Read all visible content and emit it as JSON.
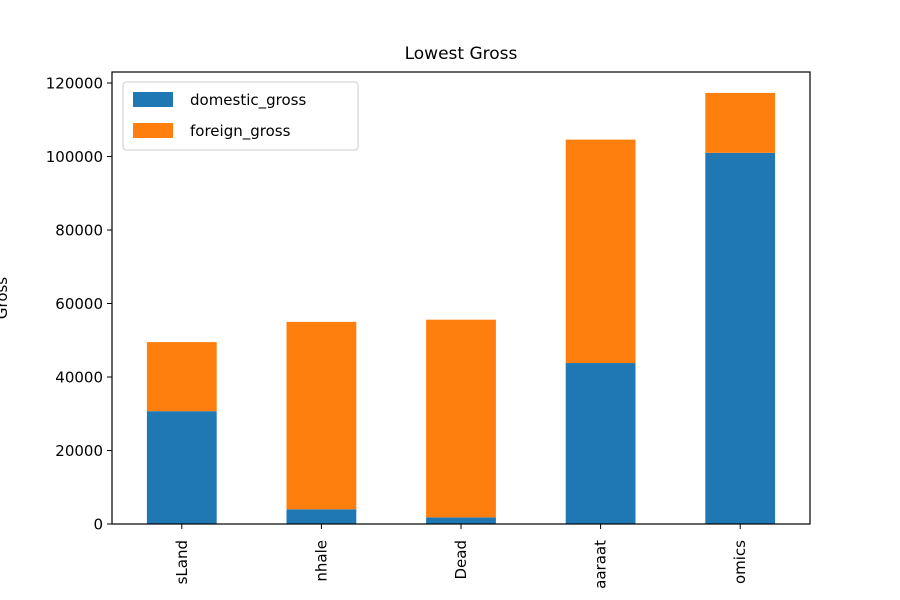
{
  "chart_data": {
    "type": "bar",
    "stacked": true,
    "title": "Lowest Gross",
    "xlabel": "",
    "ylabel": "Gross",
    "categories": [
      "sLand",
      "nhale",
      "Dead",
      "aaraat",
      "omics"
    ],
    "series": [
      {
        "name": "domestic_gross",
        "color": "#1f77b4",
        "values": [
          30700,
          4000,
          1800,
          43800,
          101000
        ]
      },
      {
        "name": "foreign_gross",
        "color": "#ff7f0e",
        "values": [
          18800,
          51000,
          53800,
          60800,
          16300
        ]
      }
    ],
    "ylim": [
      0,
      123000
    ],
    "yticks": [
      0,
      20000,
      40000,
      60000,
      80000,
      100000,
      120000
    ],
    "grid": false,
    "legend": "top-left"
  }
}
